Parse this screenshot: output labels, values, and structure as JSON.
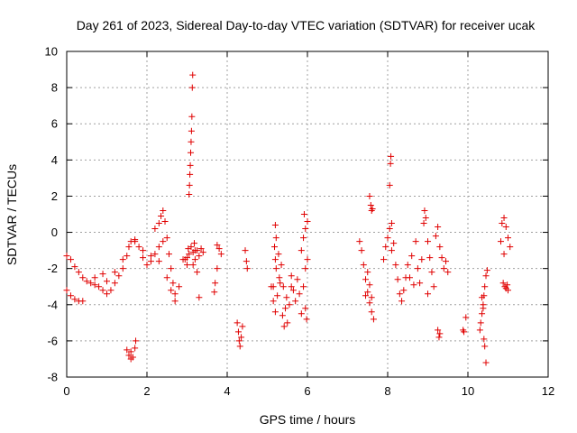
{
  "chart_data": {
    "type": "scatter",
    "title": "Day 261 of 2023, Sidereal Day-to-day VTEC variation (SDTVAR) for receiver ucak",
    "xlabel": "GPS time / hours",
    "ylabel": "SDTVAR / TECUs",
    "xlim": [
      0,
      12
    ],
    "ylim": [
      -8,
      10
    ],
    "xticks": [
      0,
      2,
      4,
      6,
      8,
      10,
      12
    ],
    "yticks": [
      -8,
      -6,
      -4,
      -2,
      0,
      2,
      4,
      6,
      8,
      10
    ],
    "grid": true,
    "marker": "plus",
    "color": "#e00000",
    "segments": [
      {
        "name": "descending arc 1",
        "points": [
          [
            0.0,
            -1.3
          ],
          [
            0.1,
            -1.5
          ],
          [
            0.2,
            -1.9
          ],
          [
            0.3,
            -2.2
          ],
          [
            0.4,
            -2.5
          ],
          [
            0.5,
            -2.7
          ],
          [
            0.6,
            -2.8
          ],
          [
            0.7,
            -2.9
          ],
          [
            0.8,
            -3.0
          ],
          [
            0.9,
            -3.2
          ],
          [
            1.0,
            -3.4
          ],
          [
            1.1,
            -3.2
          ],
          [
            1.2,
            -2.8
          ],
          [
            1.3,
            -2.4
          ],
          [
            1.4,
            -2.0
          ],
          [
            1.5,
            -1.3
          ],
          [
            1.6,
            -0.5
          ],
          [
            1.7,
            -0.5
          ],
          [
            1.8,
            -0.8
          ],
          [
            1.9,
            -1.4
          ],
          [
            2.0,
            -1.8
          ],
          [
            2.1,
            -1.6
          ],
          [
            2.2,
            -1.2
          ],
          [
            2.3,
            -0.8
          ],
          [
            2.4,
            -0.5
          ]
        ]
      },
      {
        "name": "descending arc 2",
        "points": [
          [
            0.0,
            -3.2
          ],
          [
            0.1,
            -3.5
          ],
          [
            0.2,
            -3.7
          ],
          [
            0.3,
            -3.8
          ],
          [
            0.4,
            -3.8
          ],
          [
            0.7,
            -2.5
          ],
          [
            0.9,
            -2.3
          ],
          [
            1.0,
            -2.7
          ],
          [
            1.2,
            -2.2
          ],
          [
            1.4,
            -1.5
          ],
          [
            1.55,
            -0.8
          ],
          [
            1.7,
            -0.4
          ],
          [
            1.9,
            -1.0
          ],
          [
            2.1,
            -1.3
          ],
          [
            2.3,
            -1.6
          ],
          [
            2.5,
            -2.5
          ],
          [
            2.6,
            -3.2
          ],
          [
            2.7,
            -3.8
          ],
          [
            2.8,
            -3.0
          ],
          [
            2.9,
            -1.5
          ]
        ]
      },
      {
        "name": "cluster near 1.6h",
        "points": [
          [
            1.5,
            -6.5
          ],
          [
            1.55,
            -6.8
          ],
          [
            1.6,
            -6.6
          ],
          [
            1.65,
            -6.9
          ],
          [
            1.7,
            -6.4
          ],
          [
            1.72,
            -6.0
          ],
          [
            1.6,
            -7.0
          ]
        ]
      },
      {
        "name": "rising streak near 2.4h",
        "points": [
          [
            2.2,
            0.2
          ],
          [
            2.3,
            0.5
          ],
          [
            2.35,
            0.9
          ],
          [
            2.4,
            1.2
          ],
          [
            2.45,
            0.6
          ],
          [
            2.5,
            -0.3
          ],
          [
            2.55,
            -1.2
          ],
          [
            2.6,
            -2.0
          ],
          [
            2.65,
            -2.8
          ],
          [
            2.7,
            -3.4
          ]
        ]
      },
      {
        "name": "spike near 3.1h",
        "points": [
          [
            3.0,
            -1.4
          ],
          [
            3.03,
            -0.9
          ],
          [
            3.05,
            2.1
          ],
          [
            3.06,
            2.6
          ],
          [
            3.07,
            3.2
          ],
          [
            3.08,
            3.7
          ],
          [
            3.09,
            4.4
          ],
          [
            3.1,
            5.0
          ],
          [
            3.11,
            5.6
          ],
          [
            3.12,
            6.4
          ],
          [
            3.13,
            8.0
          ],
          [
            3.14,
            8.7
          ],
          [
            3.2,
            -1.0
          ],
          [
            3.25,
            -2.2
          ],
          [
            3.3,
            -3.6
          ],
          [
            3.15,
            -1.8
          ],
          [
            3.18,
            -0.6
          ]
        ]
      },
      {
        "name": "dense band 3.0-3.3h",
        "points": [
          [
            2.95,
            -1.5
          ],
          [
            3.0,
            -1.8
          ],
          [
            3.05,
            -1.2
          ],
          [
            3.1,
            -0.8
          ],
          [
            3.15,
            -1.1
          ],
          [
            3.2,
            -1.5
          ],
          [
            3.25,
            -1.0
          ],
          [
            3.3,
            -1.3
          ],
          [
            3.35,
            -0.9
          ],
          [
            3.4,
            -1.1
          ]
        ]
      },
      {
        "name": "arc near 3.8h",
        "points": [
          [
            3.75,
            -0.7
          ],
          [
            3.8,
            -0.9
          ],
          [
            3.85,
            -1.2
          ],
          [
            3.75,
            -2.0
          ],
          [
            3.7,
            -2.8
          ],
          [
            3.68,
            -3.3
          ]
        ]
      },
      {
        "name": "cluster near 4.3h",
        "points": [
          [
            4.25,
            -5.0
          ],
          [
            4.28,
            -5.5
          ],
          [
            4.3,
            -6.0
          ],
          [
            4.32,
            -6.3
          ],
          [
            4.35,
            -5.8
          ],
          [
            4.38,
            -5.2
          ],
          [
            4.45,
            -1.0
          ],
          [
            4.48,
            -1.6
          ],
          [
            4.5,
            -2.0
          ]
        ]
      },
      {
        "name": "dense band 5.2-5.5h",
        "points": [
          [
            5.1,
            -3.0
          ],
          [
            5.15,
            -3.8
          ],
          [
            5.2,
            -4.4
          ],
          [
            5.25,
            -3.5
          ],
          [
            5.3,
            -2.5
          ],
          [
            5.35,
            -1.8
          ],
          [
            5.4,
            -3.0
          ],
          [
            5.45,
            -4.2
          ],
          [
            5.5,
            -5.0
          ],
          [
            5.55,
            -4.0
          ],
          [
            5.6,
            -3.0
          ],
          [
            5.2,
            0.4
          ],
          [
            5.22,
            -0.3
          ],
          [
            5.28,
            -1.2
          ],
          [
            5.32,
            -2.8
          ],
          [
            5.38,
            -4.6
          ],
          [
            5.42,
            -5.2
          ],
          [
            5.48,
            -3.6
          ]
        ]
      },
      {
        "name": "dense band 5.6-5.9h",
        "points": [
          [
            5.6,
            -2.4
          ],
          [
            5.65,
            -3.2
          ],
          [
            5.7,
            -3.8
          ],
          [
            5.75,
            -2.6
          ],
          [
            5.8,
            -3.4
          ],
          [
            5.85,
            -4.5
          ],
          [
            5.9,
            -3.0
          ],
          [
            5.95,
            -2.0
          ],
          [
            5.85,
            -1.0
          ],
          [
            5.9,
            -0.3
          ],
          [
            5.95,
            0.2
          ],
          [
            6.0,
            0.6
          ],
          [
            5.92,
            1.0
          ],
          [
            6.0,
            -1.5
          ],
          [
            5.98,
            -4.8
          ],
          [
            5.95,
            -4.2
          ]
        ]
      },
      {
        "name": "points near 5.2h",
        "points": [
          [
            5.18,
            -0.8
          ],
          [
            5.2,
            -1.5
          ],
          [
            5.22,
            -2.0
          ],
          [
            5.15,
            -3.0
          ]
        ]
      },
      {
        "name": "streak near 7.5h",
        "points": [
          [
            7.3,
            -0.5
          ],
          [
            7.35,
            -1.0
          ],
          [
            7.4,
            -1.8
          ],
          [
            7.45,
            -2.6
          ],
          [
            7.5,
            -3.3
          ],
          [
            7.55,
            -3.9
          ],
          [
            7.6,
            -4.4
          ],
          [
            7.65,
            -4.8
          ],
          [
            7.45,
            -3.5
          ],
          [
            7.55,
            -2.9
          ],
          [
            7.5,
            -2.2
          ],
          [
            7.6,
            -3.6
          ]
        ]
      },
      {
        "name": "spike near 7.6h",
        "points": [
          [
            7.55,
            2.0
          ],
          [
            7.58,
            1.5
          ],
          [
            7.6,
            1.2
          ],
          [
            7.62,
            1.3
          ]
        ]
      },
      {
        "name": "cluster near 8.0h",
        "points": [
          [
            7.9,
            -1.5
          ],
          [
            7.95,
            -0.8
          ],
          [
            8.0,
            -0.3
          ],
          [
            8.05,
            0.2
          ],
          [
            8.1,
            0.5
          ],
          [
            8.15,
            -0.6
          ],
          [
            8.2,
            -1.8
          ],
          [
            8.25,
            -2.6
          ],
          [
            8.3,
            -3.4
          ],
          [
            8.35,
            -3.8
          ],
          [
            8.4,
            -3.2
          ],
          [
            8.45,
            -2.5
          ],
          [
            8.05,
            2.6
          ],
          [
            8.07,
            3.8
          ],
          [
            8.08,
            4.2
          ],
          [
            8.1,
            -1.0
          ]
        ]
      },
      {
        "name": "cluster near 8.5-9.0h",
        "points": [
          [
            8.5,
            -1.8
          ],
          [
            8.6,
            -1.3
          ],
          [
            8.7,
            -0.5
          ],
          [
            8.75,
            -2.0
          ],
          [
            8.8,
            -2.8
          ],
          [
            8.85,
            -1.5
          ],
          [
            8.9,
            0.5
          ],
          [
            8.92,
            1.2
          ],
          [
            8.95,
            0.8
          ],
          [
            9.0,
            -0.5
          ],
          [
            9.05,
            -1.4
          ],
          [
            9.1,
            -2.2
          ],
          [
            9.15,
            -3.0
          ],
          [
            9.0,
            -3.4
          ],
          [
            8.55,
            -2.5
          ],
          [
            8.65,
            -2.9
          ]
        ]
      },
      {
        "name": "cluster near 9.2-9.5h",
        "points": [
          [
            9.2,
            -0.2
          ],
          [
            9.25,
            0.3
          ],
          [
            9.3,
            -0.8
          ],
          [
            9.35,
            -1.4
          ],
          [
            9.4,
            -2.0
          ],
          [
            9.45,
            -1.6
          ],
          [
            9.5,
            -2.2
          ],
          [
            9.25,
            -5.4
          ],
          [
            9.28,
            -5.8
          ],
          [
            9.3,
            -5.6
          ]
        ]
      },
      {
        "name": "points near 9.9h",
        "points": [
          [
            9.88,
            -5.4
          ],
          [
            9.9,
            -5.5
          ],
          [
            9.95,
            -4.7
          ]
        ]
      },
      {
        "name": "descending streak near 10.4h",
        "points": [
          [
            10.3,
            -5.4
          ],
          [
            10.32,
            -5.0
          ],
          [
            10.35,
            -4.5
          ],
          [
            10.38,
            -4.0
          ],
          [
            10.4,
            -3.5
          ],
          [
            10.42,
            -3.0
          ],
          [
            10.45,
            -2.4
          ],
          [
            10.48,
            -2.1
          ],
          [
            10.4,
            -5.9
          ],
          [
            10.42,
            -6.3
          ],
          [
            10.45,
            -7.2
          ],
          [
            10.35,
            -3.6
          ],
          [
            10.38,
            -4.2
          ]
        ]
      },
      {
        "name": "cluster near 10.9h",
        "points": [
          [
            10.85,
            0.5
          ],
          [
            10.9,
            0.8
          ],
          [
            10.95,
            0.3
          ],
          [
            11.0,
            -0.3
          ],
          [
            11.05,
            -0.8
          ],
          [
            10.88,
            -2.8
          ],
          [
            10.92,
            -3.0
          ],
          [
            10.95,
            -3.1
          ],
          [
            10.98,
            -2.9
          ],
          [
            11.0,
            -3.2
          ],
          [
            10.82,
            -0.5
          ],
          [
            10.9,
            -1.2
          ]
        ]
      }
    ]
  }
}
